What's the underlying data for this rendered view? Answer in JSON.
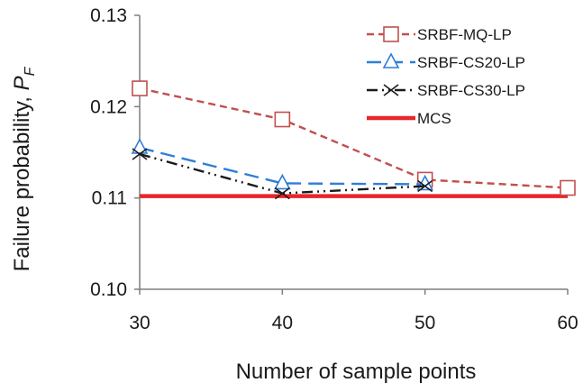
{
  "chart_data": {
    "type": "line",
    "xlabel": "Number of sample points",
    "ylabel_main": "Failure probability, ",
    "ylabel_symbol": "P",
    "ylabel_subscript": "F",
    "x_ticks": [
      30,
      40,
      50,
      60
    ],
    "x_tick_labels": [
      "30",
      "40",
      "50",
      "60"
    ],
    "y_ticks": [
      0.1,
      0.11,
      0.12,
      0.13
    ],
    "y_tick_labels": [
      "0.10",
      "0.11",
      "0.12",
      "0.13"
    ],
    "xlim": [
      30,
      60
    ],
    "ylim": [
      0.1,
      0.13
    ],
    "grid": false,
    "legend_position": "top-right",
    "series": [
      {
        "name": "SRBF-MQ-LP",
        "color": "#c0504d",
        "line_style": "dashed",
        "marker": "square",
        "x": [
          30,
          40,
          50,
          60
        ],
        "y": [
          0.122,
          0.1186,
          0.112,
          0.1111
        ]
      },
      {
        "name": "SRBF-CS20-LP",
        "color": "#2f7ed8",
        "line_style": "long-dash",
        "marker": "triangle",
        "x": [
          30,
          40,
          50
        ],
        "y": [
          0.1155,
          0.1116,
          0.1115
        ]
      },
      {
        "name": "SRBF-CS30-LP",
        "color": "#1a1a1a",
        "line_style": "dash-dot-dot",
        "marker": "x",
        "x": [
          30,
          40,
          50
        ],
        "y": [
          0.1148,
          0.1105,
          0.1113
        ]
      },
      {
        "name": "MCS",
        "color": "#e8262b",
        "line_style": "solid",
        "marker": "none",
        "x": [
          30,
          60
        ],
        "y": [
          0.1102,
          0.1102
        ]
      }
    ]
  }
}
